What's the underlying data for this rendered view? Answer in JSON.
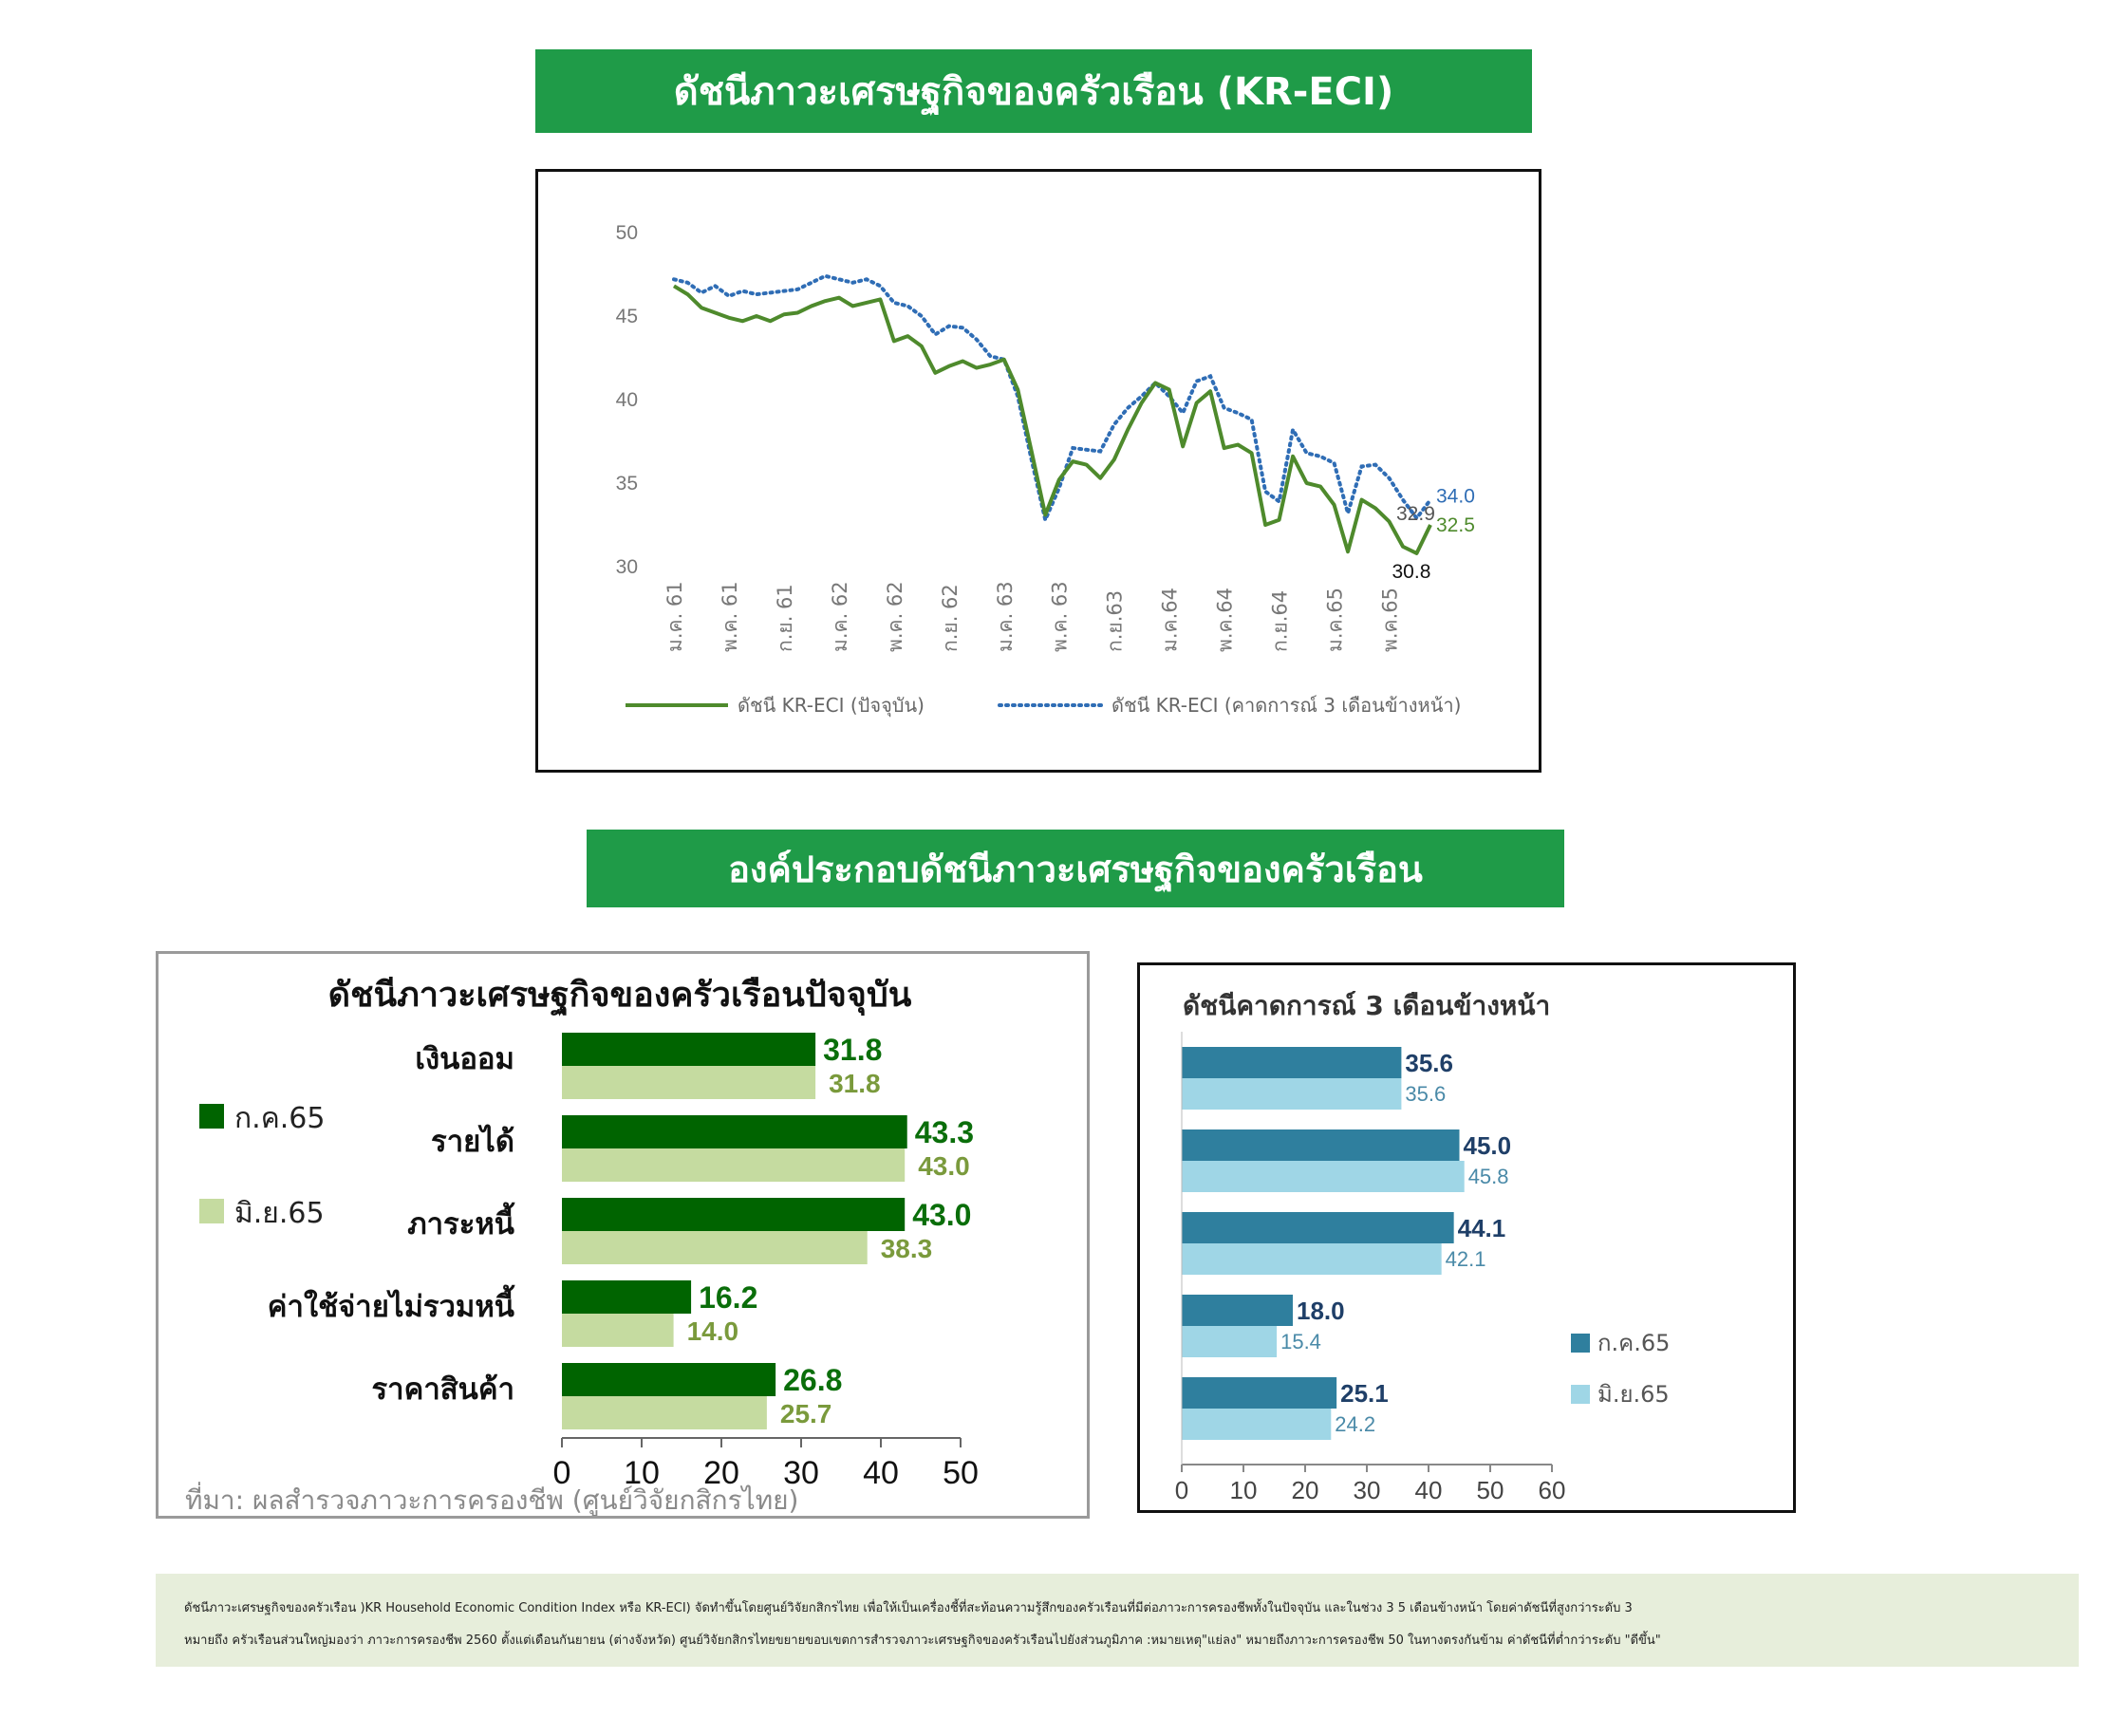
{
  "banners": {
    "top": "ดัชนีภาวะเศรษฐกิจของครัวเรือน (KR-ECI)",
    "middle": "องค์ประกอบดัชนีภาวะเศรษฐกิจของครัวเรือน"
  },
  "colors": {
    "banner_green": "#1f9b48",
    "line_current": "#4e8a2c",
    "line_expected": "#2f6db5",
    "bar_dark_green": "#006400",
    "bar_light_green": "#c5dba0",
    "label_dark_green": "#0a6e0a",
    "label_olive": "#7a9a3c",
    "bar_teal_dark": "#2f7f9e",
    "bar_teal_light": "#9fd6e6",
    "note_bg": "#e7eedb"
  },
  "chart_data": [
    {
      "type": "line",
      "x_tick_labels": [
        "ม.ค. 61",
        "พ.ค. 61",
        "ก.ย. 61",
        "ม.ค. 62",
        "พ.ค. 62",
        "ก.ย. 62",
        "ม.ค. 63",
        "พ.ค. 63",
        "ก.ย.63",
        "ม.ค.64",
        "พ.ค.64",
        "ก.ย.64",
        "ม.ค.65",
        "พ.ค.65"
      ],
      "yticks": [
        50,
        45,
        40,
        35,
        30
      ],
      "ylim": [
        30,
        50
      ],
      "series": [
        {
          "name": "ดัชนี KR-ECI (ปัจจุบัน)",
          "values": [
            46.8,
            46.3,
            45.5,
            45.2,
            44.9,
            44.7,
            45.0,
            44.7,
            45.1,
            45.2,
            45.6,
            45.9,
            46.1,
            45.6,
            45.8,
            46.0,
            43.5,
            43.8,
            43.2,
            41.6,
            42.0,
            42.3,
            41.9,
            42.1,
            42.4,
            40.6,
            36.9,
            33.1,
            35.2,
            36.3,
            36.1,
            35.3,
            36.4,
            38.2,
            39.8,
            41.0,
            40.6,
            37.2,
            39.8,
            40.5,
            37.1,
            37.3,
            36.8,
            32.5,
            32.8,
            36.6,
            35.0,
            34.8,
            33.7,
            30.9,
            34.0,
            33.5,
            32.7,
            31.2,
            30.8,
            32.5
          ]
        },
        {
          "name": "ดัชนี KR-ECI (คาดการณ์ 3 เดือนข้างหน้า)",
          "values": [
            47.2,
            47.0,
            46.4,
            46.8,
            46.2,
            46.5,
            46.3,
            46.4,
            46.5,
            46.6,
            47.0,
            47.4,
            47.2,
            47.0,
            47.2,
            46.8,
            45.8,
            45.6,
            45.0,
            43.9,
            44.4,
            44.3,
            43.6,
            42.6,
            42.4,
            40.2,
            36.4,
            32.8,
            34.7,
            37.1,
            37.0,
            36.9,
            38.5,
            39.5,
            40.2,
            41.0,
            40.2,
            39.2,
            41.1,
            41.4,
            39.5,
            39.2,
            38.8,
            34.5,
            33.9,
            38.2,
            36.8,
            36.6,
            36.2,
            33.2,
            36.0,
            36.1,
            35.3,
            34.0,
            32.9,
            34.0
          ]
        }
      ],
      "end_labels": [
        {
          "text": "32.9",
          "value": 32.9,
          "color": "#555555"
        },
        {
          "text": "34.0",
          "value": 34.0,
          "color": "#2f6db5"
        },
        {
          "text": "32.5",
          "value": 32.5,
          "color": "#4e8a2c"
        },
        {
          "text": "30.8",
          "value": 30.8,
          "color": "#111111"
        }
      ],
      "legend_position": "bottom"
    },
    {
      "type": "bar",
      "orientation": "horizontal",
      "title": "ดัชนีภาวะเศรษฐกิจของครัวเรือนปัจจุบัน",
      "categories": [
        "เงินออม",
        "รายได้",
        "ภาระหนี้",
        "ค่าใช้จ่ายไม่รวมหนี้",
        "ราคาสินค้า"
      ],
      "series": [
        {
          "name": "ก.ค.65",
          "values": [
            31.8,
            43.3,
            43.0,
            16.2,
            26.8
          ]
        },
        {
          "name": "มิ.ย.65",
          "values": [
            31.8,
            43.0,
            38.3,
            14.0,
            25.7
          ]
        }
      ],
      "value_labels": [
        [
          "31.8",
          "43.3",
          "43.0",
          "16.2",
          "26.8"
        ],
        [
          "31.8",
          "43.0",
          "38.3",
          "14.0",
          "25.7"
        ]
      ],
      "xlim": [
        0,
        50
      ],
      "xticks": [
        "0",
        "10",
        "20",
        "30",
        "40",
        "50"
      ],
      "legend_position": "left",
      "source": "ที่มา: ผลสำรวจภาวะการครองชีพ (ศูนย์วิจัยกสิกรไทย)"
    },
    {
      "type": "bar",
      "orientation": "horizontal",
      "title": "ดัชนีคาดการณ์ 3 เดือนข้างหน้า",
      "series": [
        {
          "name": "ก.ค.65",
          "values": [
            35.6,
            45.0,
            44.1,
            18.0,
            25.1
          ]
        },
        {
          "name": "มิ.ย.65",
          "values": [
            35.6,
            45.8,
            42.1,
            15.4,
            24.2
          ]
        }
      ],
      "value_labels": [
        [
          "35.6",
          "45.0",
          "44.1",
          "18.0",
          "25.1"
        ],
        [
          "35.6",
          "45.8",
          "42.1",
          "15.4",
          "24.2"
        ]
      ],
      "xlim": [
        0,
        60
      ],
      "xticks": [
        "0",
        "10",
        "20",
        "30",
        "40",
        "50",
        "60"
      ],
      "legend_position": "right"
    }
  ],
  "note": {
    "line1": "ดัชนีภาวะเศรษฐกิจของครัวเรือน )KR Household Economic Condition Index หรือ KR-ECI) จัดทำขึ้นโดยศูนย์วิจัยกสิกรไทย เพื่อให้เป็นเครื่องชี้ที่สะท้อนความรู้สึกของครัวเรือนที่มีต่อภาวะการครองชีพทั้งในปัจจุบัน และในช่วง 3   5 เดือนข้างหน้า โดยค่าดัชนีที่สูงกว่าระดับ 3",
    "line2": "หมายถึง ครัวเรือนส่วนใหญ่มองว่า ภาวะการครองชีพ  2560 ตั้งแต่เดือนกันยายน (ต่างจังหวัด) ศูนย์วิจัยกสิกรไทยขยายขอบเขตการสำรวจภาวะเศรษฐกิจของครัวเรือนไปยังส่วนภูมิภาค :หมายเหตุ\"แย่ลง\" หมายถึงภาวะการครองชีพ 50 ในทางตรงกันข้าม ค่าดัชนีที่ต่ำกว่าระดับ \"ดีขึ้น\""
  }
}
